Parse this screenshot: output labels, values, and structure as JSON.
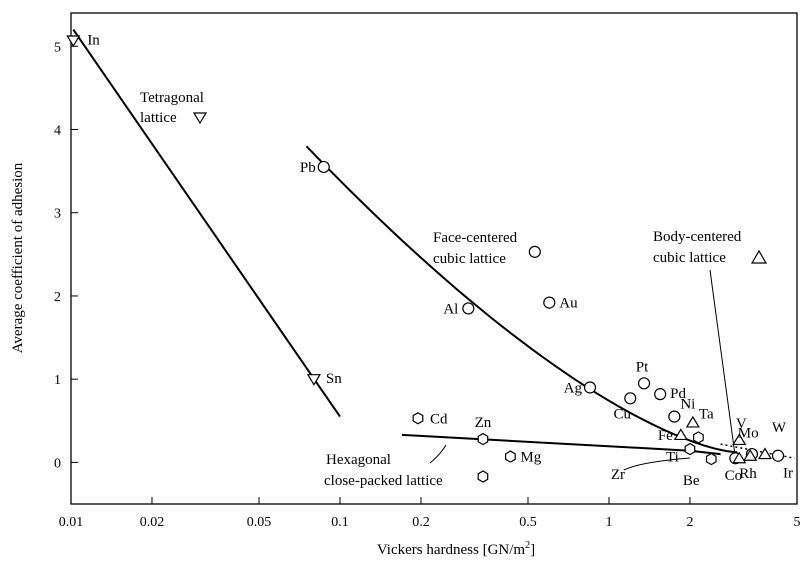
{
  "chart_data": {
    "type": "scatter",
    "xlabel": "Vickers hardness [GN/m",
    "xlabel_sup": "2",
    "xlabel_end": "]",
    "ylabel": "Average coefficient of adhesion",
    "x_scale": "log",
    "xlim": [
      0.01,
      5
    ],
    "ylim": [
      -0.5,
      5.4
    ],
    "x_ticks": [
      {
        "value": 0.01,
        "label": "0.01"
      },
      {
        "value": 0.02,
        "label": "0.02"
      },
      {
        "value": 0.05,
        "label": "0.05"
      },
      {
        "value": 0.1,
        "label": "0.1"
      },
      {
        "value": 0.2,
        "label": "0.2"
      },
      {
        "value": 0.5,
        "label": "0.5"
      },
      {
        "value": 1,
        "label": "1"
      },
      {
        "value": 2,
        "label": "2"
      },
      {
        "value": 5,
        "label": "5"
      }
    ],
    "y_ticks": [
      {
        "value": 0,
        "label": "0"
      },
      {
        "value": 1,
        "label": "1"
      },
      {
        "value": 2,
        "label": "2"
      },
      {
        "value": 3,
        "label": "3"
      },
      {
        "value": 4,
        "label": "4"
      },
      {
        "value": 5,
        "label": "5"
      }
    ],
    "grid": false,
    "series": [
      {
        "name": "Tetragonal lattice",
        "marker": "triangle-down",
        "points": [
          {
            "label": "In",
            "x": 0.0102,
            "y": 5.07
          },
          {
            "label": "Sn",
            "x": 0.08,
            "y": 1.0
          }
        ]
      },
      {
        "name": "Face-centered cubic lattice",
        "marker": "circle",
        "points": [
          {
            "label": "Pb",
            "x": 0.087,
            "y": 3.55
          },
          {
            "label": "Al",
            "x": 0.3,
            "y": 1.85
          },
          {
            "label": "Au",
            "x": 0.6,
            "y": 1.92
          },
          {
            "label": "Ag",
            "x": 0.85,
            "y": 0.9
          },
          {
            "label": "Cu",
            "x": 1.2,
            "y": 0.77
          },
          {
            "label": "Pt",
            "x": 1.35,
            "y": 0.95
          },
          {
            "label": "Pd",
            "x": 1.55,
            "y": 0.82
          },
          {
            "label": "Ni",
            "x": 1.75,
            "y": 0.55
          },
          {
            "label": "Co",
            "x": 2.95,
            "y": 0.05
          },
          {
            "label": "Rh",
            "x": 3.4,
            "y": 0.1
          },
          {
            "label": "Ir",
            "x": 4.25,
            "y": 0.08
          },
          {
            "label": "",
            "x": 0.53,
            "y": 2.53
          }
        ]
      },
      {
        "name": "Body-centered cubic lattice",
        "marker": "triangle-up",
        "points": [
          {
            "label": "Fe",
            "x": 1.85,
            "y": 0.33
          },
          {
            "label": "Ta",
            "x": 2.05,
            "y": 0.48
          },
          {
            "label": "V",
            "x": 3.05,
            "y": 0.27
          },
          {
            "label": "Mo",
            "x": 3.35,
            "y": 0.08
          },
          {
            "label": "W",
            "x": 3.8,
            "y": 0.1
          },
          {
            "label": "",
            "x": 3.05,
            "y": 0.05
          }
        ]
      },
      {
        "name": "Hexagonal close-packed lattice",
        "marker": "hexagon",
        "points": [
          {
            "label": "Cd",
            "x": 0.195,
            "y": 0.53
          },
          {
            "label": "Zn",
            "x": 0.34,
            "y": 0.28
          },
          {
            "label": "Mg",
            "x": 0.43,
            "y": 0.07
          },
          {
            "label": "Zr",
            "x": 2.0,
            "y": 0.16
          },
          {
            "label": "Ti",
            "x": 2.15,
            "y": 0.3
          },
          {
            "label": "Be",
            "x": 2.4,
            "y": 0.04
          },
          {
            "label": "",
            "x": 0.34,
            "y": -0.17
          }
        ]
      }
    ],
    "legend_labels": {
      "tetragonal_1": "Tetragonal",
      "tetragonal_2": "lattice",
      "fcc_1": "Face-centered",
      "fcc_2": "cubic lattice",
      "bcc_1": "Body-centered",
      "bcc_2": "cubic lattice",
      "hcp_1": "Hexagonal",
      "hcp_2": "close-packed lattice"
    }
  }
}
